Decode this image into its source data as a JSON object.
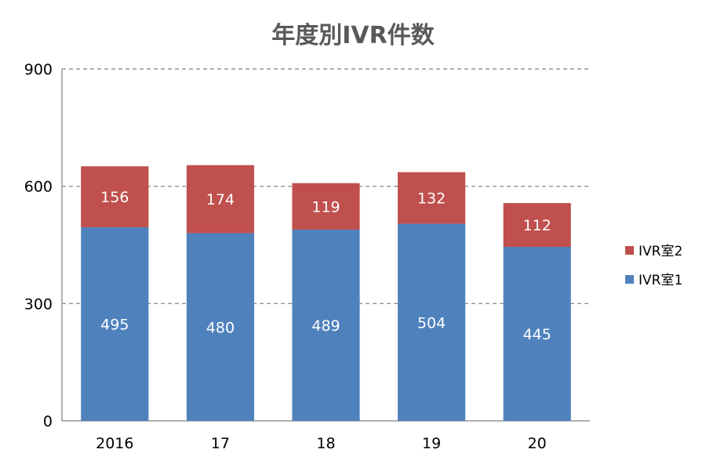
{
  "chart_data": {
    "type": "bar",
    "stacked": true,
    "title": "年度別IVR件数",
    "categories": [
      "2016",
      "17",
      "18",
      "19",
      "20"
    ],
    "series": [
      {
        "name": "IVR室1",
        "values": [
          495,
          480,
          489,
          504,
          445
        ],
        "color": "#4f81bd"
      },
      {
        "name": "IVR室2",
        "values": [
          156,
          174,
          119,
          132,
          112
        ],
        "color": "#c0504d"
      }
    ],
    "ylim": [
      0,
      900
    ],
    "yticks": [
      0,
      300,
      600,
      900
    ],
    "grid": true,
    "legend_position": "right"
  }
}
